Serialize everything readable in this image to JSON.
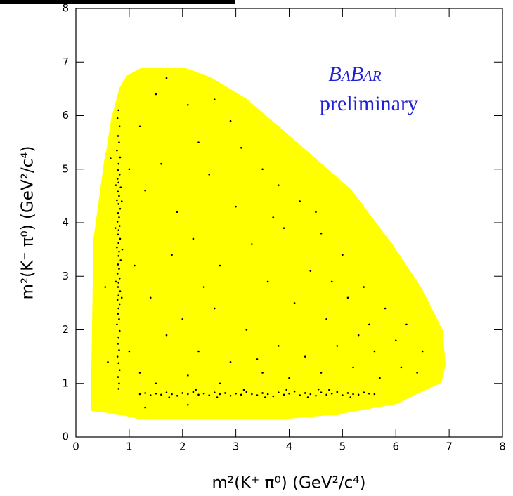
{
  "chart_data": {
    "type": "scatter",
    "title": "BaBar",
    "subtitle": "preliminary",
    "x_label": "m²(K⁺ π⁰) (GeV²/c⁴)",
    "y_label": "m²(K⁻ π⁰) (GeV²/c⁴)",
    "xlim": [
      0,
      8
    ],
    "ylim": [
      0,
      8
    ],
    "xticks": [
      0,
      1,
      2,
      3,
      4,
      5,
      6,
      7,
      8
    ],
    "yticks": [
      0,
      1,
      2,
      3,
      4,
      5,
      6,
      7,
      8
    ],
    "color": "#000000",
    "region_color": "#ffff00",
    "title_color": "#1f1fd6",
    "x": [
      0.8,
      0.78,
      0.82,
      0.79,
      0.81,
      0.77,
      0.83,
      0.8,
      0.79,
      0.82,
      0.78,
      0.8,
      0.84,
      0.79,
      0.81,
      0.77,
      0.8,
      0.83,
      0.79,
      0.81,
      0.78,
      0.82,
      0.8,
      0.79,
      0.83,
      0.8,
      0.77,
      0.81,
      0.8,
      0.84,
      0.79,
      0.81,
      0.78,
      0.82,
      0.8,
      0.79,
      0.83,
      0.8,
      0.78,
      0.82,
      0.8,
      0.79,
      0.81,
      0.77,
      0.82,
      0.8,
      0.79,
      0.81,
      0.78,
      0.8,
      0.82,
      0.79,
      0.81,
      0.8,
      0.75,
      0.86,
      0.74,
      0.87,
      0.75,
      0.86,
      1.2,
      1.3,
      1.4,
      1.5,
      1.6,
      1.7,
      1.8,
      1.9,
      2.0,
      2.1,
      2.2,
      2.3,
      2.4,
      2.5,
      2.6,
      2.7,
      2.8,
      2.9,
      3.0,
      3.1,
      3.2,
      3.3,
      3.4,
      3.5,
      3.6,
      3.7,
      3.8,
      3.9,
      4.0,
      4.1,
      4.2,
      4.3,
      4.4,
      4.5,
      4.6,
      4.7,
      4.8,
      4.9,
      5.0,
      5.1,
      5.2,
      5.3,
      5.4,
      5.5,
      5.6,
      2.25,
      2.65,
      3.15,
      3.55,
      3.95,
      4.35,
      4.75,
      5.15,
      1.75,
      4.55,
      1.2,
      1.5,
      1.7,
      2.1,
      2.3,
      2.6,
      2.9,
      3.1,
      3.5,
      3.8,
      4.2,
      4.6,
      5.0,
      5.4,
      5.8,
      6.2,
      6.5,
      6.4,
      6.1,
      5.7,
      1.3,
      1.6,
      1.9,
      2.2,
      2.5,
      2.7,
      3.0,
      3.3,
      3.6,
      3.9,
      4.1,
      4.4,
      4.7,
      5.1,
      5.3,
      5.6,
      1.1,
      1.4,
      1.7,
      2.0,
      2.3,
      2.6,
      2.9,
      3.2,
      3.5,
      3.8,
      4.0,
      4.3,
      4.6,
      4.9,
      5.2,
      1.0,
      1.2,
      1.5,
      2.1,
      2.7,
      3.4,
      4.8,
      5.5,
      6.0,
      1.8,
      2.4,
      3.7,
      4.5,
      1.3,
      2.1,
      0.6,
      0.55,
      0.65,
      1.0
    ],
    "values": [
      6.1,
      5.95,
      5.8,
      5.62,
      5.5,
      5.35,
      5.22,
      5.1,
      4.98,
      4.9,
      4.82,
      4.75,
      4.66,
      4.58,
      4.5,
      4.42,
      4.35,
      4.26,
      4.18,
      4.1,
      4.02,
      3.94,
      3.86,
      3.78,
      3.7,
      3.62,
      3.54,
      3.46,
      3.38,
      3.3,
      3.22,
      3.14,
      3.05,
      2.96,
      2.88,
      2.8,
      2.72,
      2.64,
      2.56,
      2.48,
      2.4,
      2.3,
      2.2,
      2.1,
      1.98,
      1.86,
      1.74,
      1.62,
      1.5,
      1.38,
      1.25,
      1.12,
      1.0,
      0.9,
      4.7,
      4.4,
      3.9,
      3.5,
      2.9,
      2.6,
      0.8,
      0.82,
      0.78,
      0.81,
      0.79,
      0.83,
      0.8,
      0.77,
      0.82,
      0.8,
      0.84,
      0.79,
      0.81,
      0.78,
      0.83,
      0.8,
      0.82,
      0.77,
      0.81,
      0.79,
      0.84,
      0.8,
      0.78,
      0.82,
      0.8,
      0.76,
      0.83,
      0.79,
      0.81,
      0.85,
      0.78,
      0.82,
      0.8,
      0.77,
      0.83,
      0.79,
      0.81,
      0.84,
      0.78,
      0.82,
      0.8,
      0.79,
      0.83,
      0.81,
      0.8,
      0.88,
      0.74,
      0.88,
      0.74,
      0.88,
      0.74,
      0.88,
      0.74,
      0.74,
      0.89,
      5.8,
      6.4,
      6.7,
      6.2,
      5.5,
      6.3,
      5.9,
      5.4,
      5.0,
      4.7,
      4.4,
      3.8,
      3.4,
      2.8,
      2.4,
      2.1,
      1.6,
      1.2,
      1.3,
      1.1,
      4.6,
      5.1,
      4.2,
      3.7,
      4.9,
      3.2,
      4.3,
      3.6,
      2.9,
      3.9,
      2.5,
      3.1,
      2.2,
      2.6,
      1.9,
      1.6,
      3.2,
      2.6,
      1.9,
      2.2,
      1.6,
      2.4,
      1.4,
      2.0,
      1.2,
      1.7,
      1.1,
      1.5,
      1.2,
      1.7,
      1.3,
      1.6,
      1.2,
      1.0,
      1.15,
      1.0,
      1.45,
      2.9,
      2.1,
      1.8,
      3.4,
      2.8,
      4.1,
      4.2,
      0.55,
      0.6,
      1.4,
      2.8,
      5.2,
      5.0
    ]
  }
}
